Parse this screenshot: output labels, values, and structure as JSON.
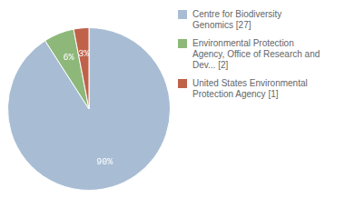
{
  "chart_data": {
    "type": "pie",
    "categories": [
      "Centre for Biodiversity\nGenomics [27]",
      "Environmental Protection\nAgency, Office of Research and\nDev... [2]",
      "United States Environmental\nProtection Agency [1]"
    ],
    "values": [
      90,
      6,
      3
    ],
    "value_labels": [
      "90%",
      "6%",
      "3%"
    ],
    "colors": [
      "#a8bdd4",
      "#8db87a",
      "#c0624a"
    ],
    "data_labels": true,
    "legend": "right"
  }
}
